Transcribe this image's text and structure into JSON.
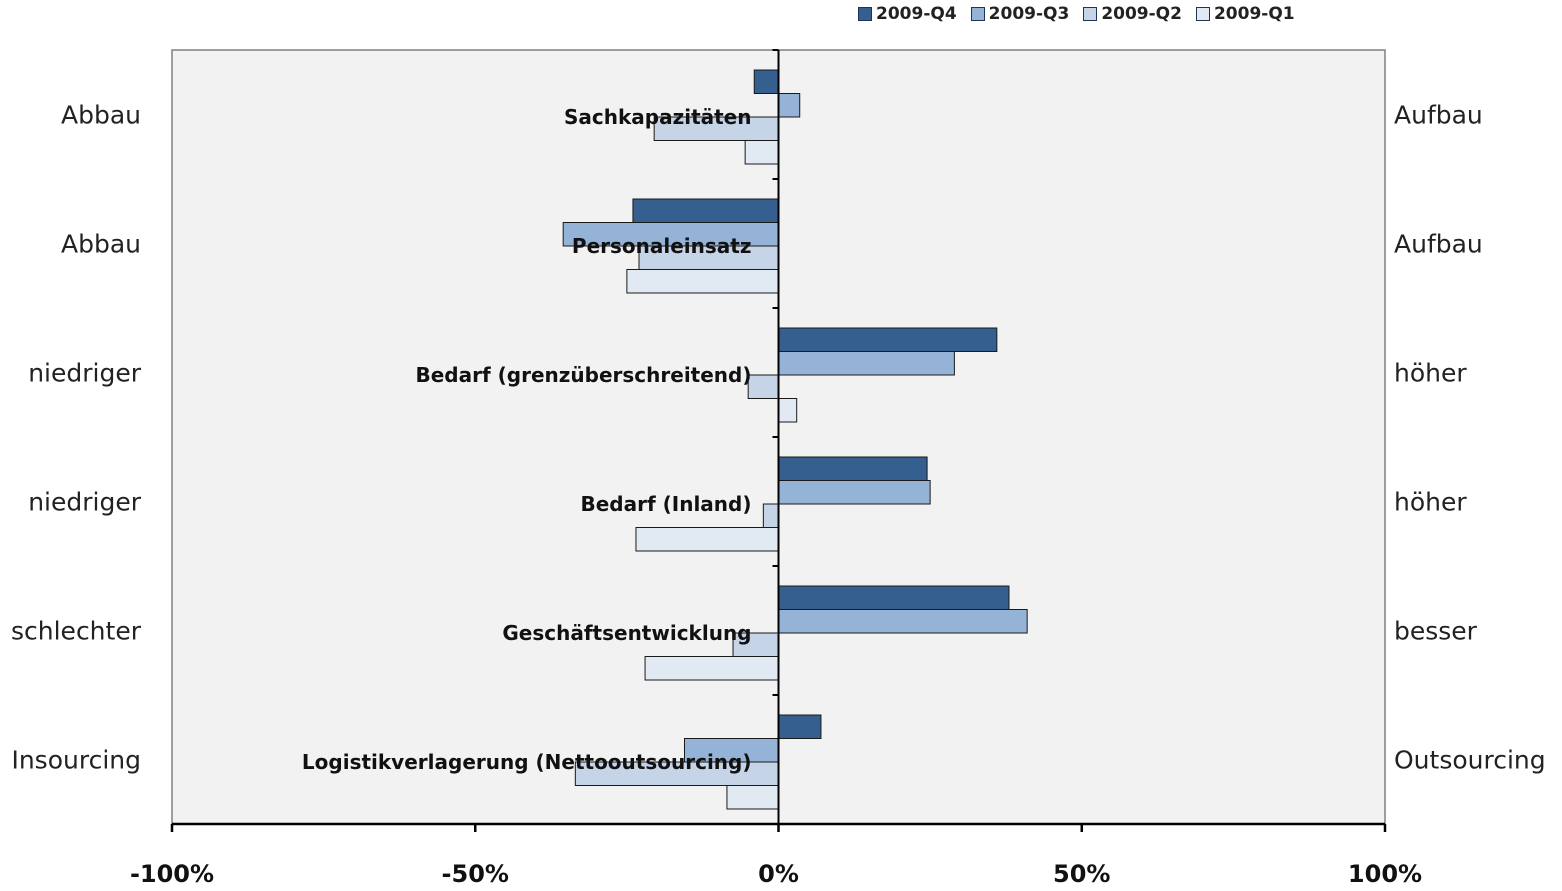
{
  "chart_data": {
    "type": "bar",
    "orientation": "horizontal",
    "categories": [
      "Sachkapazitäten",
      "Personaleinsatz",
      "Bedarf (grenzüberschreitend)",
      "Bedarf (Inland)",
      "Geschäftsentwicklung",
      "Logistikverlagerung (Nettooutsourcing)"
    ],
    "left_labels": [
      "Abbau",
      "Abbau",
      "niedriger",
      "niedriger",
      "schlechter",
      "Insourcing"
    ],
    "right_labels": [
      "Aufbau",
      "Aufbau",
      "höher",
      "höher",
      "besser",
      "Outsourcing"
    ],
    "series": [
      {
        "name": "2009-Q4",
        "color": "#355f8f",
        "values": [
          -4,
          -24,
          36,
          24.5,
          38,
          7
        ]
      },
      {
        "name": "2009-Q3",
        "color": "#95b3d7",
        "values": [
          3.5,
          -35.5,
          29,
          25,
          41,
          -15.5
        ]
      },
      {
        "name": "2009-Q2",
        "color": "#c6d4e8",
        "values": [
          -20.5,
          -23,
          -5,
          -2.5,
          -7.5,
          -33.5
        ]
      },
      {
        "name": "2009-Q1",
        "color": "#e1e9f3",
        "values": [
          -5.5,
          -25,
          3,
          -23.5,
          -22,
          -8.5
        ]
      }
    ],
    "xlim": [
      -100,
      100
    ],
    "xticks": [
      -100,
      -50,
      0,
      50,
      100
    ],
    "xtick_labels": [
      "-100%",
      "-50%",
      "0%",
      "50%",
      "100%"
    ],
    "legend_position": "top-right",
    "grid": false,
    "plot_background": "#f2f2f2"
  }
}
